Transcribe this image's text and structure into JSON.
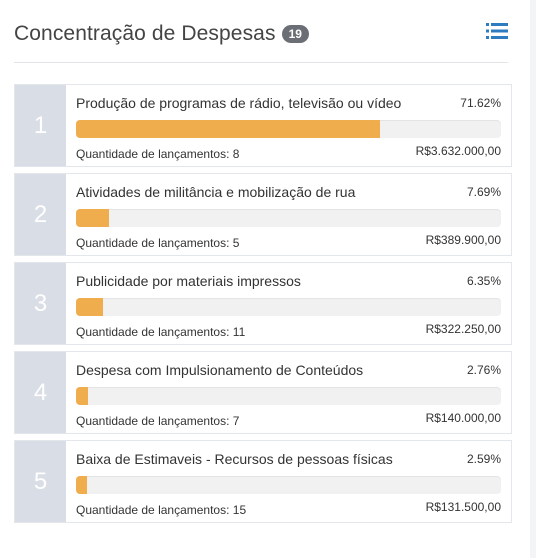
{
  "header": {
    "title": "Concentração de Despesas",
    "badge": "19",
    "icon": "list-icon",
    "accent": "#2f7bbf"
  },
  "colors": {
    "bar_fill": "#f0ad4e",
    "rank_bg": "#d9dde5"
  },
  "count_prefix": "Quantidade de lançamentos: ",
  "items": [
    {
      "rank": "1",
      "label": "Produção de programas de rádio, televisão ou vídeo",
      "percent": "71.62%",
      "share": 71.62,
      "count": "8",
      "value": "R$3.632.000,00"
    },
    {
      "rank": "2",
      "label": "Atividades de militância e mobilização de rua",
      "percent": "7.69%",
      "share": 7.69,
      "count": "5",
      "value": "R$389.900,00"
    },
    {
      "rank": "3",
      "label": "Publicidade por materiais impressos",
      "percent": "6.35%",
      "share": 6.35,
      "count": "11",
      "value": "R$322.250,00"
    },
    {
      "rank": "4",
      "label": "Despesa com Impulsionamento de Conteúdos",
      "percent": "2.76%",
      "share": 2.76,
      "count": "7",
      "value": "R$140.000,00"
    },
    {
      "rank": "5",
      "label": "Baixa de Estimaveis - Recursos de pessoas físicas",
      "percent": "2.59%",
      "share": 2.59,
      "count": "15",
      "value": "R$131.500,00"
    }
  ]
}
